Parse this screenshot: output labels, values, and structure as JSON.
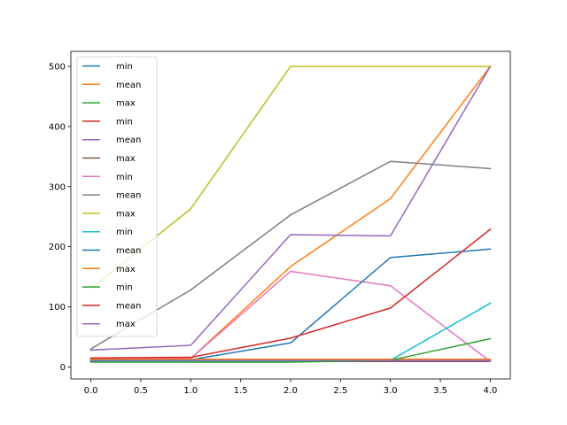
{
  "chart_data": {
    "type": "line",
    "title": "",
    "xlabel": "",
    "ylabel": "",
    "x": [
      0,
      1,
      2,
      3,
      4
    ],
    "xlim": [
      -0.2,
      4.2
    ],
    "ylim": [
      -20,
      525
    ],
    "x_ticks": [
      0.0,
      0.5,
      1.0,
      1.5,
      2.0,
      2.5,
      3.0,
      3.5,
      4.0
    ],
    "x_tick_labels": [
      "0.0",
      "0.5",
      "1.0",
      "1.5",
      "2.0",
      "2.5",
      "3.0",
      "3.5",
      "4.0"
    ],
    "y_ticks": [
      0,
      100,
      200,
      300,
      400,
      500
    ],
    "y_tick_labels": [
      "0",
      "100",
      "200",
      "300",
      "400",
      "500"
    ],
    "grid": false,
    "legend_position": "upper-left",
    "series": [
      {
        "name": "min",
        "color": "#1f77b4",
        "values": [
          10,
          10,
          10,
          10,
          10
        ]
      },
      {
        "name": "mean",
        "color": "#ff7f0e",
        "values": [
          14,
          14,
          167,
          280,
          500
        ]
      },
      {
        "name": "max",
        "color": "#2ca02c",
        "values": [
          10,
          10,
          10,
          10,
          10
        ]
      },
      {
        "name": "min",
        "color": "#d62728",
        "values": [
          9,
          9,
          9,
          9,
          9
        ]
      },
      {
        "name": "mean",
        "color": "#9467bd",
        "values": [
          28,
          36,
          220,
          218,
          500
        ]
      },
      {
        "name": "max",
        "color": "#8c564b",
        "values": [
          9,
          9,
          9,
          9,
          9
        ]
      },
      {
        "name": "min",
        "color": "#e377c2",
        "values": [
          14,
          14,
          159,
          135,
          9
        ]
      },
      {
        "name": "mean",
        "color": "#7f7f7f",
        "values": [
          30,
          128,
          253,
          342,
          330
        ]
      },
      {
        "name": "max",
        "color": "#bcbd22",
        "values": [
          130,
          263,
          500,
          500,
          500
        ]
      },
      {
        "name": "min",
        "color": "#17becf",
        "values": [
          10,
          10,
          10,
          11,
          106
        ]
      },
      {
        "name": "mean",
        "color": "#1f77b4",
        "values": [
          12,
          12,
          40,
          182,
          196
        ]
      },
      {
        "name": "max",
        "color": "#ff7f0e",
        "values": [
          13,
          13,
          13,
          13,
          13
        ]
      },
      {
        "name": "min",
        "color": "#2ca02c",
        "values": [
          8,
          8,
          8,
          11,
          47
        ]
      },
      {
        "name": "mean",
        "color": "#d62728",
        "values": [
          15,
          16,
          48,
          98,
          229
        ]
      },
      {
        "name": "max",
        "color": "#9467bd",
        "values": [
          11,
          11,
          11,
          11,
          11
        ]
      }
    ]
  }
}
